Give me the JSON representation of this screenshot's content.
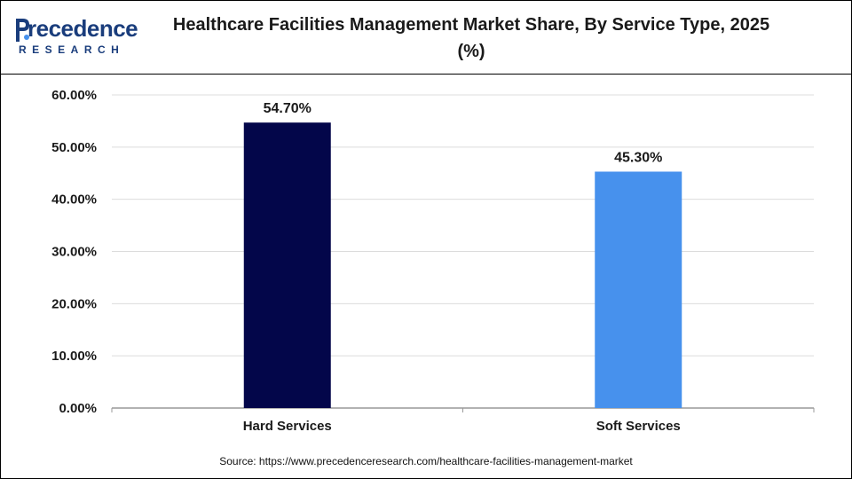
{
  "header": {
    "logo_word": "recedence",
    "logo_sub": "RESEARCH",
    "title": "Healthcare Facilities Management Market Share, By Service Type, 2025 (%)"
  },
  "source": "Source: https://www.precedenceresearch.com/healthcare-facilities-management-market",
  "colors": {
    "hard": "#03064a",
    "soft": "#4791ed",
    "brand": "#1a3d7c",
    "grid": "#dcdcdc"
  },
  "chart_data": {
    "type": "bar",
    "categories": [
      "Hard Services",
      "Soft Services"
    ],
    "values": [
      54.7,
      45.3
    ],
    "value_labels": [
      "54.70%",
      "45.30%"
    ],
    "yticks": [
      "0.00%",
      "10.00%",
      "20.00%",
      "30.00%",
      "40.00%",
      "50.00%",
      "60.00%"
    ],
    "ylim": [
      0,
      60
    ],
    "grid": true,
    "legend": "none"
  }
}
